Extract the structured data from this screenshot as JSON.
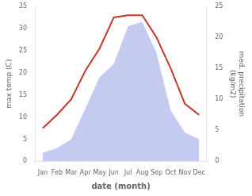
{
  "chart_data": {
    "type": "line",
    "xlabel": "date (month)",
    "ylabel": "max temp (C)",
    "y2label": "med. precipitation\n(kg/m2)",
    "x": [
      1,
      2,
      3,
      4,
      5,
      6,
      7,
      8,
      9,
      10,
      11,
      12
    ],
    "xlim": [
      0.5,
      12.5
    ],
    "xticks": [
      {
        "value": 1,
        "label": "Jan"
      },
      {
        "value": 2,
        "label": "Feb"
      },
      {
        "value": 3,
        "label": "Mar"
      },
      {
        "value": 4,
        "label": "Apr"
      },
      {
        "value": 5,
        "label": "May"
      },
      {
        "value": 6,
        "label": "Jun"
      },
      {
        "value": 7,
        "label": "Jul"
      },
      {
        "value": 8,
        "label": "Aug"
      },
      {
        "value": 9,
        "label": "Sep"
      },
      {
        "value": 10,
        "label": "Oct"
      },
      {
        "value": 11,
        "label": "Nov"
      },
      {
        "value": 12,
        "label": "Dec"
      }
    ],
    "ylim": [
      0,
      35
    ],
    "yticks": [
      0,
      5,
      10,
      15,
      20,
      25,
      30,
      35
    ],
    "y2lim": [
      0,
      25
    ],
    "y2ticks": [
      0,
      5,
      10,
      15,
      20,
      25
    ],
    "grid": false,
    "series": [
      {
        "type": "area",
        "color": "#c5caf0",
        "values": [
          2.0,
          3.0,
          5.0,
          12.0,
          19.0,
          22.0,
          30.5,
          31.5,
          24.5,
          11.5,
          6.5,
          5.0
        ]
      },
      {
        "type": "line",
        "color": "#c0392b",
        "values": [
          7.5,
          10.5,
          14.0,
          20.5,
          25.5,
          32.5,
          33.0,
          33.0,
          28.0,
          21.0,
          13.0,
          10.5
        ]
      }
    ]
  }
}
